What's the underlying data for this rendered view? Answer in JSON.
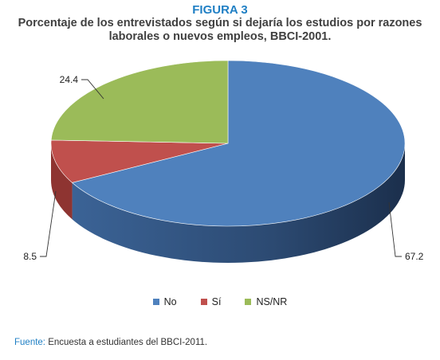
{
  "figure": {
    "label": "FIGURA 3"
  },
  "chart_data": {
    "type": "pie",
    "title": "Porcentaje de los entrevistados según si dejaría los estudios por razones laborales o nuevos empleos, BBCI-2001.",
    "categories": [
      "No",
      "Sí",
      "NS/NR"
    ],
    "values": [
      67.2,
      8.5,
      24.4
    ],
    "data_labels": [
      "67.2",
      "8.5",
      "24.4"
    ],
    "colors": [
      "#4f81bd",
      "#c0504d",
      "#9bbb59"
    ],
    "legend_position": "bottom",
    "style": "3d"
  },
  "source": {
    "key": "Fuente:",
    "text": " Encuesta a estudiantes del BBCI-2011."
  }
}
